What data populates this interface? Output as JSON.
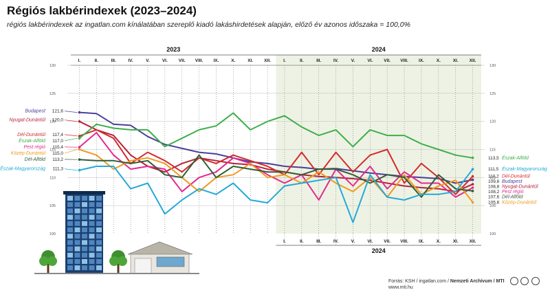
{
  "title": "Régiós lakbérindexek (2023–2024)",
  "subtitle": "régiós lakbérindexek az ingatlan.com kínálatában szereplő kiadó lakáshirdetések alapján, előző év azonos időszaka = 100,0%",
  "footer": {
    "source": "Forrás: KSH / ingatlan.com / ",
    "credit": "Nemzeti Archívum / MTI",
    "site": "www.mti.hu"
  },
  "chart_data": {
    "type": "line",
    "years": [
      "2023",
      "2024"
    ],
    "months": [
      "I.",
      "II.",
      "III.",
      "IV.",
      "V.",
      "VI.",
      "VII.",
      "VIII.",
      "IX.",
      "X.",
      "XI.",
      "XII."
    ],
    "ylim": [
      100,
      130
    ],
    "yticks": [
      100,
      105,
      110,
      115,
      120,
      125,
      130
    ],
    "colors": {
      "Budapest": "#4a3f97",
      "Nyugat-Dunántúl": "#b6213a",
      "Dél-Dunántúl": "#d42a2a",
      "Észak-Alföld": "#3fae49",
      "Pest régió": "#e3298f",
      "Közép-Dunántúl": "#f09a20",
      "Dél-Alföld": "#2f5e36",
      "Észak-Magyarország": "#24a9d8"
    },
    "series": [
      {
        "name": "Budapest",
        "label_start": "121,6",
        "label_end": "109,6",
        "values": [
          121.6,
          121.4,
          119.5,
          119.3,
          117.3,
          115.9,
          115.2,
          114.5,
          114.2,
          113.5,
          112.8,
          112.5,
          112.0,
          111.8,
          111.5,
          111.6,
          111.2,
          110.8,
          110.5,
          110.2,
          110.0,
          109.8,
          109.0,
          109.6
        ]
      },
      {
        "name": "Nyugat-Dunántúl",
        "label_start": "120,0",
        "label_end": "108,8",
        "values": [
          120.0,
          118.5,
          117.5,
          114.0,
          112.0,
          111.0,
          112.5,
          113.5,
          113.0,
          112.5,
          112.3,
          111.5,
          111.0,
          110.5,
          110.2,
          110.0,
          109.8,
          109.5,
          109.0,
          108.5,
          108.2,
          108.0,
          107.5,
          108.8
        ]
      },
      {
        "name": "Dél-Dunántúl",
        "label_start": "117,4",
        "label_end": "110,2",
        "values": [
          117.4,
          118.5,
          117.0,
          112.5,
          114.5,
          113.0,
          111.0,
          113.5,
          112.5,
          114.0,
          113.0,
          112.0,
          110.5,
          114.5,
          110.5,
          114.5,
          111.0,
          114.0,
          115.0,
          109.0,
          112.5,
          110.0,
          107.0,
          110.2
        ]
      },
      {
        "name": "Észak-Alföld",
        "label_start": "117,0",
        "label_end": "113,5",
        "values": [
          117.0,
          119.5,
          118.8,
          118.5,
          118.5,
          115.5,
          117.0,
          118.5,
          119.2,
          121.5,
          118.5,
          120.0,
          121.0,
          119.0,
          117.5,
          118.5,
          115.5,
          118.5,
          117.5,
          117.5,
          116.0,
          115.0,
          114.0,
          113.5
        ]
      },
      {
        "name": "Pest régió",
        "label_start": "115,4",
        "label_end": "108,2",
        "values": [
          115.4,
          118.0,
          114.0,
          111.5,
          112.0,
          111.5,
          107.5,
          110.0,
          111.0,
          113.5,
          112.5,
          110.5,
          109.0,
          110.5,
          106.0,
          111.5,
          108.5,
          112.0,
          108.0,
          111.0,
          109.0,
          109.0,
          106.5,
          108.2
        ]
      },
      {
        "name": "Közép-Dunántúl",
        "label_start": "115,0",
        "label_end": "105,6",
        "values": [
          115.0,
          114.0,
          111.5,
          113.0,
          113.5,
          112.5,
          110.0,
          107.5,
          110.0,
          110.5,
          112.5,
          110.0,
          110.5,
          109.0,
          111.0,
          109.0,
          107.5,
          110.0,
          106.5,
          110.5,
          107.0,
          108.5,
          109.5,
          105.6
        ]
      },
      {
        "name": "Dél-Alföld",
        "label_start": "113,2",
        "label_end": "107,6",
        "values": [
          113.2,
          113.0,
          113.0,
          112.5,
          113.0,
          110.5,
          110.0,
          114.0,
          110.0,
          112.0,
          111.5,
          111.0,
          111.0,
          110.5,
          111.5,
          111.5,
          110.5,
          109.0,
          110.5,
          110.0,
          106.5,
          110.5,
          108.0,
          107.6
        ]
      },
      {
        "name": "Észak-Magyarország",
        "label_start": "111,3",
        "label_end": "111,5",
        "values": [
          111.3,
          112.0,
          112.0,
          108.0,
          109.0,
          103.5,
          106.0,
          108.0,
          107.0,
          109.0,
          106.0,
          105.5,
          108.5,
          109.0,
          109.5,
          110.0,
          102.0,
          110.5,
          106.5,
          106.0,
          107.0,
          107.0,
          107.5,
          111.5
        ]
      }
    ]
  }
}
